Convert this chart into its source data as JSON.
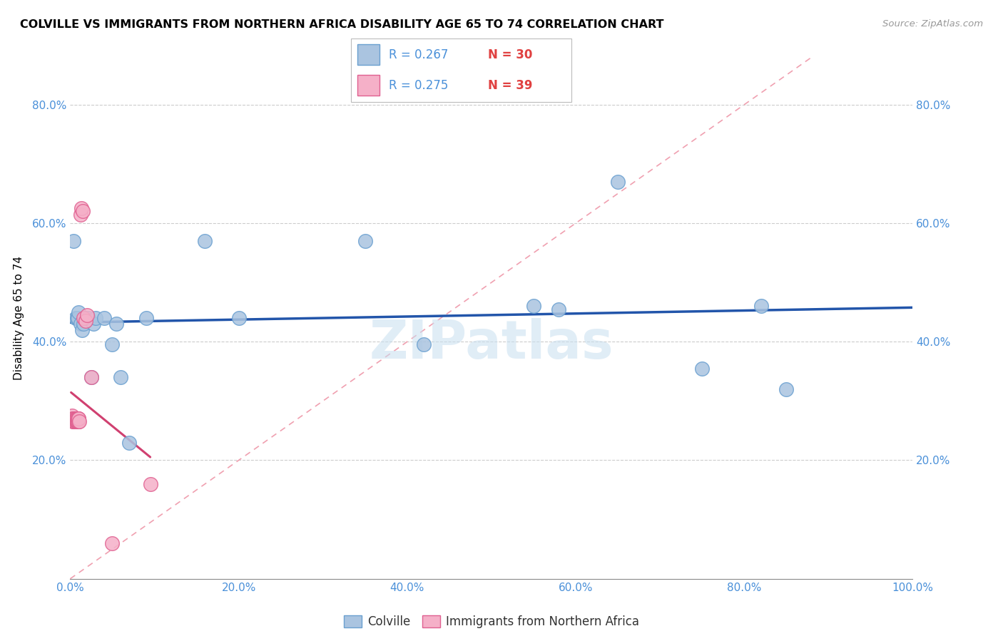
{
  "title": "COLVILLE VS IMMIGRANTS FROM NORTHERN AFRICA DISABILITY AGE 65 TO 74 CORRELATION CHART",
  "source": "Source: ZipAtlas.com",
  "ylabel": "Disability Age 65 to 74",
  "xlim": [
    0,
    1.0
  ],
  "ylim": [
    0,
    0.88
  ],
  "xticks": [
    0.0,
    0.2,
    0.4,
    0.6,
    0.8,
    1.0
  ],
  "yticks": [
    0.2,
    0.4,
    0.6,
    0.8
  ],
  "xticklabels": [
    "0.0%",
    "20.0%",
    "40.0%",
    "60.0%",
    "80.0%",
    "100.0%"
  ],
  "yticklabels": [
    "20.0%",
    "40.0%",
    "60.0%",
    "80.0%"
  ],
  "colville_color": "#aac4e0",
  "colville_edge_color": "#6aa0d0",
  "immigrants_color": "#f5b0c8",
  "immigrants_edge_color": "#e06090",
  "regression_colville_color": "#2255aa",
  "regression_immigrants_color": "#d04070",
  "diag_color": "#f0a0b0",
  "tick_color": "#4a90d9",
  "legend_r_color": "#4a90d9",
  "legend_n_color": "#e04040",
  "legend_r_colville": "R = 0.267",
  "legend_n_colville": "N = 30",
  "legend_r_immigrants": "R = 0.275",
  "legend_n_immigrants": "N = 39",
  "watermark": "ZIPatlas",
  "colville_x": [
    0.004,
    0.006,
    0.008,
    0.009,
    0.01,
    0.012,
    0.014,
    0.016,
    0.018,
    0.02,
    0.022,
    0.025,
    0.028,
    0.03,
    0.04,
    0.05,
    0.055,
    0.07,
    0.09,
    0.16,
    0.2,
    0.35,
    0.42,
    0.55,
    0.58,
    0.65,
    0.75,
    0.82,
    0.85,
    0.06
  ],
  "colville_y": [
    0.57,
    0.44,
    0.44,
    0.44,
    0.45,
    0.43,
    0.42,
    0.43,
    0.44,
    0.44,
    0.44,
    0.34,
    0.43,
    0.44,
    0.44,
    0.395,
    0.43,
    0.23,
    0.44,
    0.57,
    0.44,
    0.57,
    0.395,
    0.46,
    0.455,
    0.67,
    0.355,
    0.46,
    0.32,
    0.34
  ],
  "immigrants_x": [
    0.001,
    0.002,
    0.002,
    0.003,
    0.003,
    0.004,
    0.004,
    0.005,
    0.005,
    0.005,
    0.005,
    0.006,
    0.006,
    0.007,
    0.007,
    0.007,
    0.008,
    0.008,
    0.008,
    0.008,
    0.009,
    0.009,
    0.009,
    0.009,
    0.009,
    0.009,
    0.01,
    0.01,
    0.01,
    0.011,
    0.012,
    0.013,
    0.015,
    0.016,
    0.018,
    0.02,
    0.025,
    0.05,
    0.095
  ],
  "immigrants_y": [
    0.27,
    0.27,
    0.275,
    0.265,
    0.27,
    0.27,
    0.265,
    0.27,
    0.265,
    0.27,
    0.265,
    0.27,
    0.265,
    0.27,
    0.265,
    0.27,
    0.27,
    0.265,
    0.265,
    0.265,
    0.27,
    0.265,
    0.265,
    0.265,
    0.265,
    0.27,
    0.27,
    0.265,
    0.27,
    0.265,
    0.615,
    0.625,
    0.62,
    0.44,
    0.435,
    0.445,
    0.34,
    0.06,
    0.16
  ]
}
